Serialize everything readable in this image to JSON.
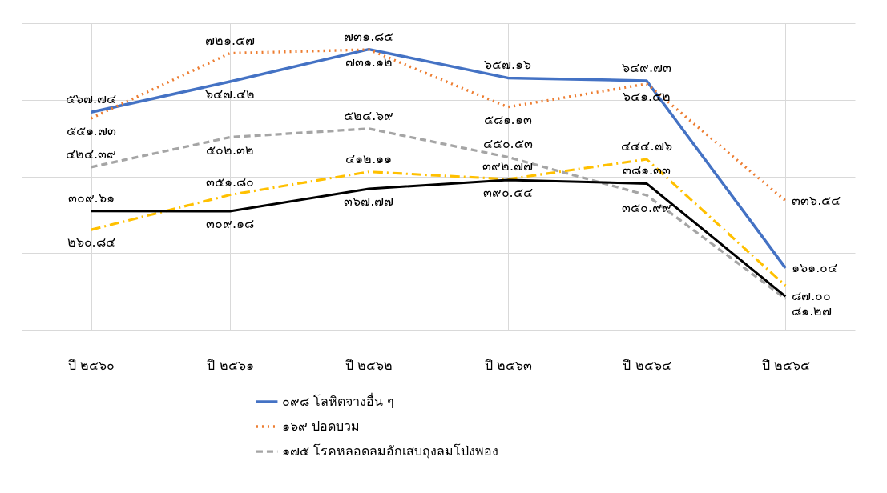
{
  "chart_data": {
    "type": "line",
    "categories": [
      "ปี ๒๕๖๐",
      "ปี ๒๕๖๑",
      "ปี ๒๕๖๒",
      "ปี ๒๕๖๓",
      "ปี ๒๕๖๔",
      "ปี ๒๕๖๕"
    ],
    "ylim": [
      0,
      800
    ],
    "yticks": [
      0,
      200,
      400,
      600,
      800
    ],
    "tick_labels": "x",
    "grid": true,
    "legend": "bottom",
    "series": [
      {
        "name": "๐๙๘ โลหิตจางอื่น ๆ",
        "color": "#4472c4",
        "line_style": "solid",
        "values": [
          567.74,
          647.42,
          731.85,
          657.16,
          649.73,
          161.04
        ],
        "value_labels": [
          "๕๖๗.๗๔",
          "๖๔๗.๔๒",
          "๗๓๑.๘๕",
          "๖๕๗.๑๖",
          "๖๔๙.๗๓",
          "๑๖๑.๐๔"
        ]
      },
      {
        "name": "๑๖๙ ปอดบวม",
        "color": "#ed7d31",
        "line_style": "dotted",
        "values": [
          551.73,
          721.57,
          731.12,
          581.13,
          641.52,
          336.54
        ],
        "value_labels": [
          "๕๕๑.๗๓",
          "๗๒๑.๕๗",
          "๗๓๑.๑๒",
          "๕๘๑.๑๓",
          "๖๔๑.๕๒",
          "๓๓๖.๕๔"
        ]
      },
      {
        "name": "๑๗๕ โรคหลอดลมอักเสบถุงลมโป่งพอง",
        "color": "#a5a5a5",
        "line_style": "dashed",
        "values": [
          424.39,
          502.32,
          524.69,
          450.53,
          350.99,
          81.27
        ],
        "value_labels": [
          "๔๒๔.๓๙",
          "๕๐๒.๓๒",
          "๕๒๔.๖๙",
          "๔๕๐.๕๓",
          "๓๕๐.๙๙",
          "๘๑.๒๗"
        ]
      },
      {
        "color": "#ffc000",
        "line_style": "dashdot",
        "values": [
          260.84,
          351.8,
          412.11,
          392.77,
          444.76,
          115
        ],
        "value_labels": [
          "๒๖๐.๘๔",
          "๓๕๑.๘๐",
          "๔๑๒.๑๑",
          "๓๙๒.๗๗",
          "๔๔๔.๗๖",
          null
        ]
      },
      {
        "color": "#000000",
        "line_style": "solid",
        "values": [
          309.61,
          309.18,
          367.77,
          390.54,
          381.33,
          87.0
        ],
        "value_labels": [
          "๓๐๙.๖๑",
          "๓๐๙.๑๘",
          "๓๖๗.๗๗",
          "๓๙๐.๕๔",
          "๓๘๑.๓๓",
          "๘๗.๐๐"
        ]
      }
    ]
  }
}
